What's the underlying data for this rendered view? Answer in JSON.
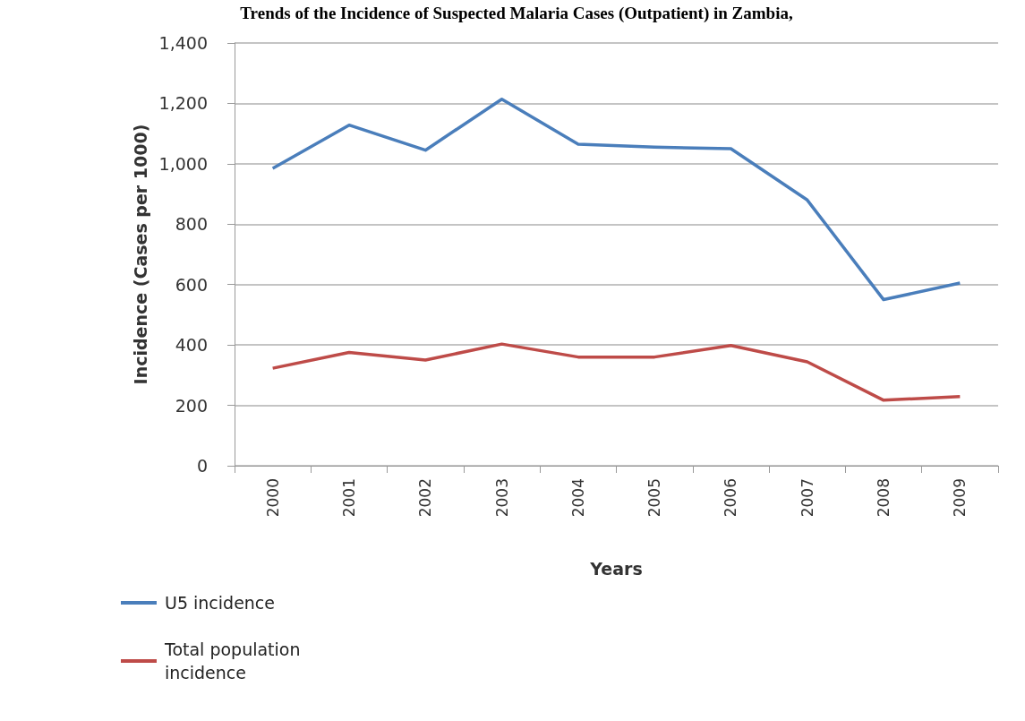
{
  "chart_data": {
    "type": "line",
    "title": "Trends of the Incidence of Suspected Malaria Cases (Outpatient) in Zambia,",
    "xlabel": "Years",
    "ylabel": "Incidence (Cases per 1000)",
    "categories": [
      "2000",
      "2001",
      "2002",
      "2003",
      "2004",
      "2005",
      "2006",
      "2007",
      "2008",
      "2009"
    ],
    "series": [
      {
        "name": "U5 incidence",
        "color": "#4a7ebb",
        "values": [
          985,
          1128,
          1045,
          1214,
          1065,
          1055,
          1050,
          880,
          550,
          605
        ]
      },
      {
        "name": "Total population incidence",
        "color": "#be4b48",
        "values": [
          323,
          375,
          350,
          403,
          360,
          360,
          398,
          344,
          217,
          229
        ]
      }
    ],
    "ylim": [
      0,
      1400
    ],
    "yticks": [
      0,
      200,
      400,
      600,
      800,
      {
        "value": 1000,
        "label": "1,000"
      },
      {
        "value": 1200,
        "label": "1,200"
      },
      {
        "value": 1400,
        "label": "1,400"
      }
    ],
    "grid": "y",
    "legend": "bottom left",
    "marker": "none",
    "line_style": "solid"
  }
}
